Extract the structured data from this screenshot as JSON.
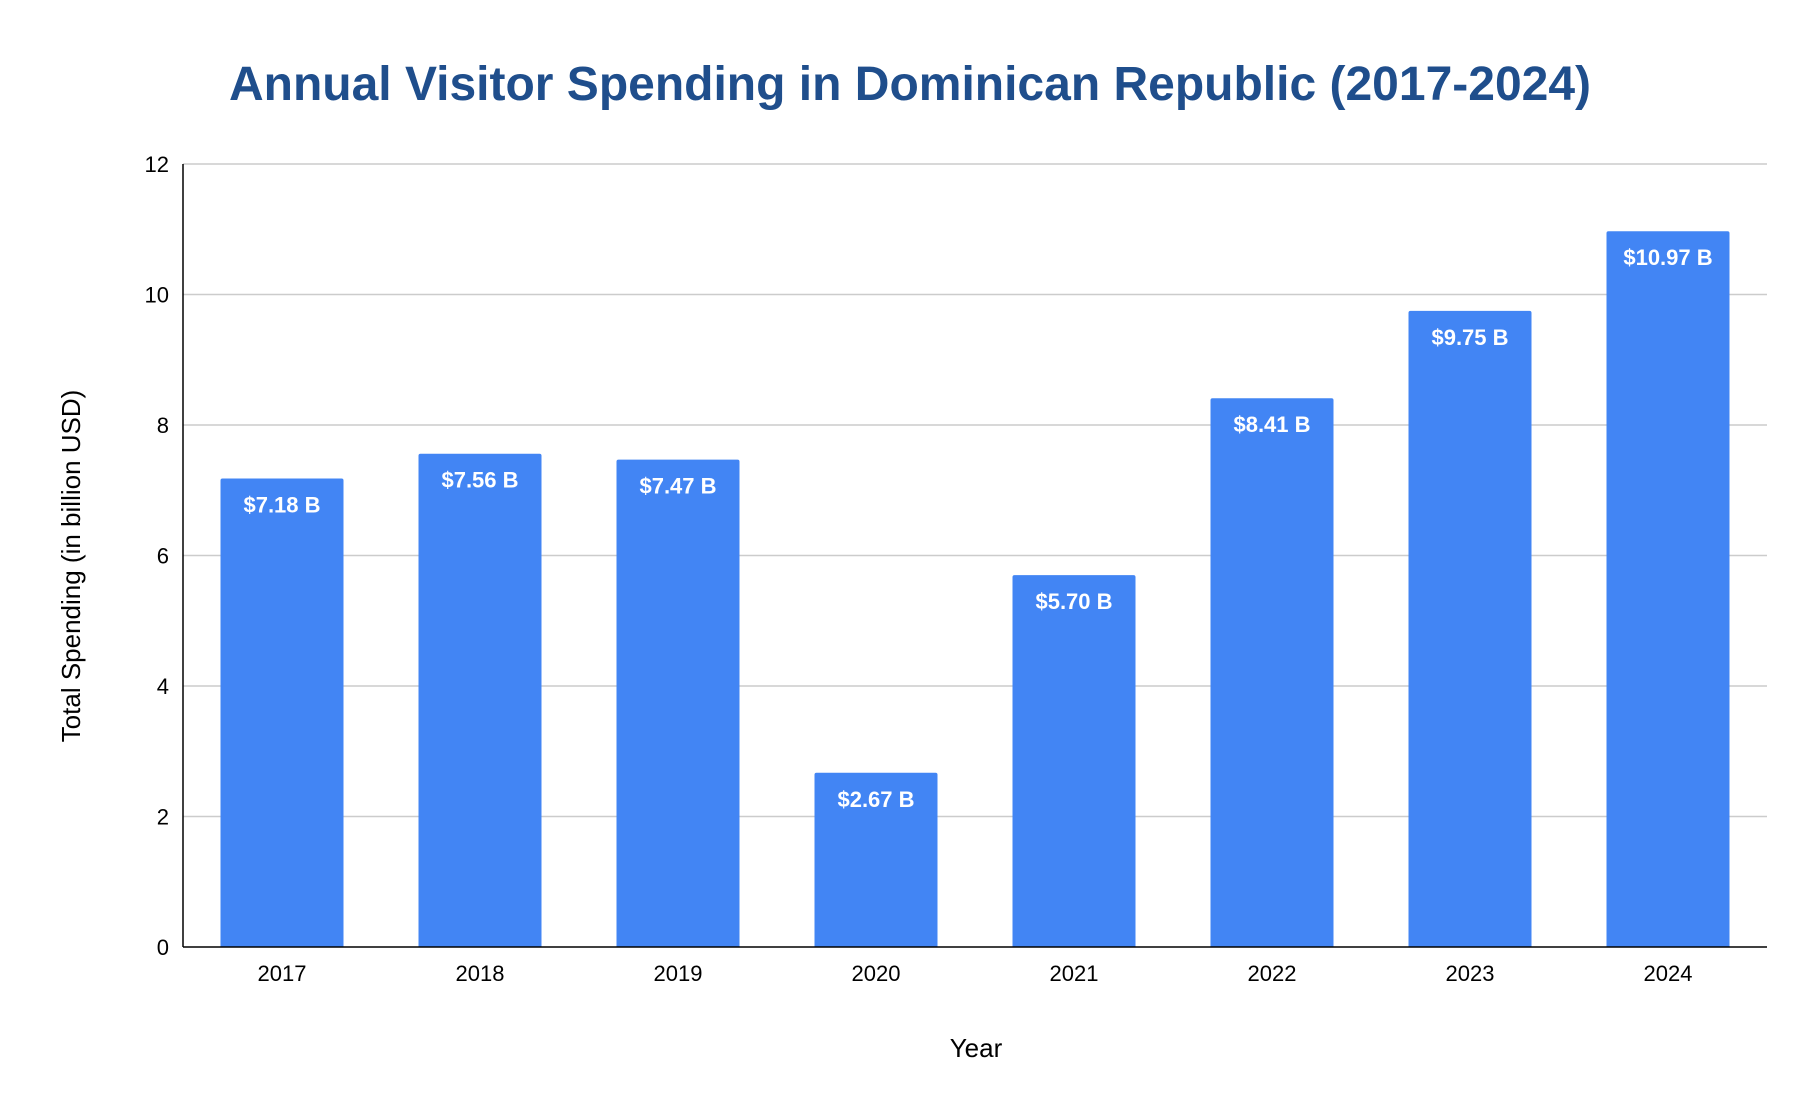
{
  "chart_data": {
    "type": "bar",
    "title": "Annual Visitor Spending in Dominican Republic (2017-2024)",
    "xlabel": "Year",
    "ylabel": "Total Spending (in billion  USD)",
    "categories": [
      "2017",
      "2018",
      "2019",
      "2020",
      "2021",
      "2022",
      "2023",
      "2024"
    ],
    "values": [
      7.18,
      7.56,
      7.47,
      2.67,
      5.7,
      8.41,
      9.75,
      10.97
    ],
    "data_labels": [
      "$7.18 B",
      "$7.56 B",
      "$7.47 B",
      "$2.67 B",
      "$5.70 B",
      "$8.41 B",
      "$9.75 B",
      "$10.97 B"
    ],
    "ylim": [
      0,
      12
    ],
    "yticks": [
      0,
      2,
      4,
      6,
      8,
      10,
      12
    ],
    "grid": true,
    "legend": "none",
    "colors": {
      "bar": "#4285f4",
      "title": "#1f4e8c",
      "grid": "#cccccc",
      "axis": "#000000"
    }
  }
}
